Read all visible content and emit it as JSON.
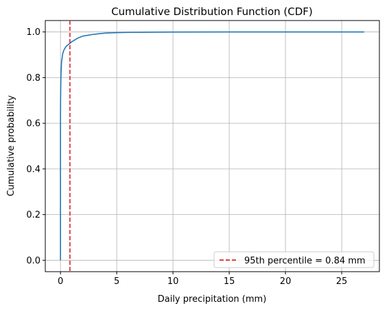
{
  "chart_data": {
    "type": "line",
    "title": "Cumulative Distribution Function (CDF)",
    "xlabel": "Daily precipitation (mm)",
    "ylabel": "Cumulative probability",
    "xlim": [
      -1.35,
      28.35
    ],
    "ylim": [
      -0.05,
      1.05
    ],
    "xticks": [
      0,
      5,
      10,
      15,
      20,
      25
    ],
    "yticks": [
      0.0,
      0.2,
      0.4,
      0.6,
      0.8,
      1.0
    ],
    "xtick_labels": [
      "0",
      "5",
      "10",
      "15",
      "20",
      "25"
    ],
    "ytick_labels": [
      "0.0",
      "0.2",
      "0.4",
      "0.6",
      "0.8",
      "1.0"
    ],
    "grid": true,
    "legend_position": "lower-right",
    "series": [
      {
        "color": "#1f77b4",
        "x": [
          0.0,
          0.0,
          0.01,
          0.03,
          0.05,
          0.1,
          0.2,
          0.3,
          0.5,
          0.84,
          1.0,
          1.5,
          2.0,
          3.0,
          4.0,
          5.0,
          6.0,
          8.0,
          10.0,
          15.0,
          20.0,
          27.0
        ],
        "y": [
          0.0,
          0.6,
          0.7,
          0.78,
          0.82,
          0.87,
          0.905,
          0.92,
          0.937,
          0.95,
          0.957,
          0.972,
          0.982,
          0.99,
          0.995,
          0.997,
          0.998,
          0.999,
          0.9995,
          1.0,
          1.0,
          1.0
        ]
      }
    ],
    "vlines": [
      {
        "x": 0.84,
        "color": "#d62728",
        "style": "dashed",
        "label": "95th percentile = 0.84 mm"
      }
    ]
  }
}
